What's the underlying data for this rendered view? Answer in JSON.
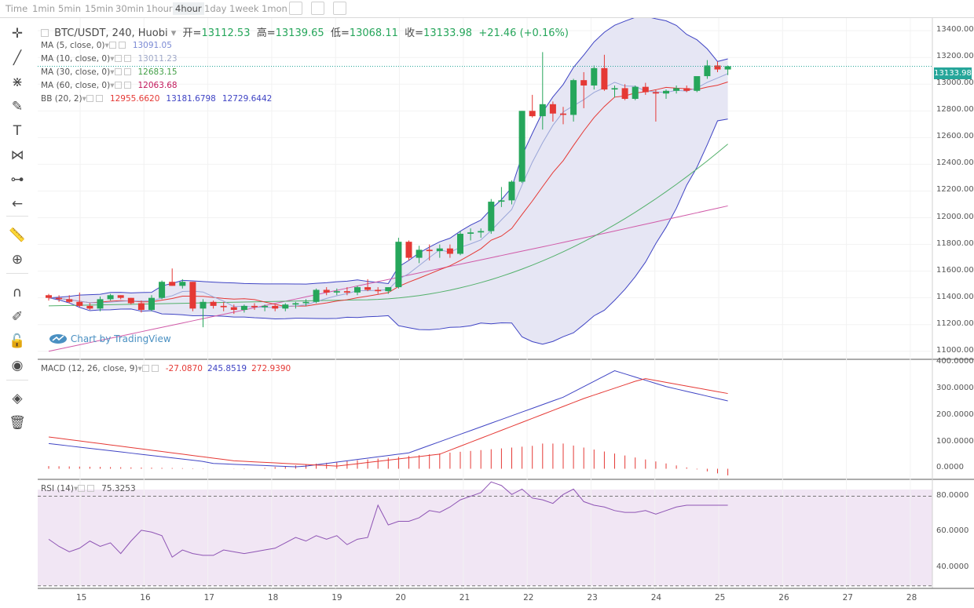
{
  "topbar": {
    "timeframes": [
      "Time",
      "1min",
      "5min",
      "15min",
      "30min",
      "1hour",
      "4hour",
      "1day",
      "1week",
      "1mon"
    ],
    "active": "4hour"
  },
  "header": {
    "symbol": "BTC/USDT, 240, Huobi",
    "open_label": "开=",
    "open": "13112.53",
    "high_label": "高=",
    "high": "13139.65",
    "low_label": "低=",
    "low": "13068.11",
    "close_label": "收=",
    "close": "13133.98",
    "change": "+21.46 (+0.16%)"
  },
  "indicators": [
    {
      "label": "MA (5, close, 0)",
      "value": "13091.05",
      "color": "#7b8ad4"
    },
    {
      "label": "MA (10, close, 0)",
      "value": "13011.23",
      "color": "#9fa8c8"
    },
    {
      "label": "MA (30, close, 0)",
      "value": "12683.15",
      "color": "#43a047"
    },
    {
      "label": "MA (60, close, 0)",
      "value": "12063.68",
      "color": "#c2185b"
    },
    {
      "label": "BB (20, 2)",
      "value": "12955.6620",
      "value2": "13181.6798",
      "value3": "12729.6442",
      "color": "#e53935"
    }
  ],
  "macd_legend": {
    "label": "MACD (12, 26, close, 9)",
    "v1": "-27.0870",
    "v2": "245.8519",
    "v3": "272.9390"
  },
  "rsi_legend": {
    "label": "RSI (14)",
    "v1": "75.3253"
  },
  "watermark": "Chart by TradingView",
  "last_price": "13133.98",
  "price_axis": [
    "13400.00",
    "13200.00",
    "13000.00",
    "12800.00",
    "12600.00",
    "12400.00",
    "12200.00",
    "12000.00",
    "11800.00",
    "11600.00",
    "11400.00",
    "11200.00",
    "11000.00"
  ],
  "macd_axis": [
    "400.0000",
    "300.0000",
    "200.0000",
    "100.0000",
    "0.0000"
  ],
  "rsi_axis": [
    "80.0000",
    "60.0000",
    "40.0000"
  ],
  "time_axis": [
    "15",
    "16",
    "17",
    "18",
    "19",
    "20",
    "21",
    "22",
    "23",
    "24",
    "25",
    "26",
    "27",
    "28"
  ],
  "colors": {
    "up": "#26a65b",
    "down": "#e53935",
    "bb_fill": "#e8e8f5",
    "bb_line": "#3f44c4"
  },
  "chart_data": {
    "type": "candlestick",
    "x_day_ticks": [
      15,
      16,
      17,
      18,
      19,
      20,
      21,
      22,
      23,
      24,
      25,
      26,
      27,
      28
    ],
    "candles": [
      [
        11420,
        11430,
        11380,
        11400
      ],
      [
        11400,
        11420,
        11370,
        11390
      ],
      [
        11390,
        11420,
        11360,
        11370
      ],
      [
        11370,
        11440,
        11330,
        11340
      ],
      [
        11340,
        11360,
        11310,
        11320
      ],
      [
        11320,
        11410,
        11300,
        11390
      ],
      [
        11390,
        11430,
        11380,
        11420
      ],
      [
        11420,
        11420,
        11390,
        11400
      ],
      [
        11400,
        11400,
        11350,
        11360
      ],
      [
        11360,
        11380,
        11290,
        11310
      ],
      [
        11310,
        11420,
        11300,
        11400
      ],
      [
        11400,
        11530,
        11390,
        11520
      ],
      [
        11520,
        11620,
        11490,
        11490
      ],
      [
        11490,
        11540,
        11470,
        11520
      ],
      [
        11520,
        11520,
        11300,
        11320
      ],
      [
        11320,
        11390,
        11180,
        11370
      ],
      [
        11370,
        11380,
        11320,
        11340
      ],
      [
        11340,
        11370,
        11300,
        11330
      ],
      [
        11330,
        11350,
        11280,
        11310
      ],
      [
        11310,
        11350,
        11290,
        11340
      ],
      [
        11340,
        11360,
        11310,
        11330
      ],
      [
        11330,
        11350,
        11300,
        11340
      ],
      [
        11340,
        11350,
        11300,
        11320
      ],
      [
        11320,
        11360,
        11300,
        11350
      ],
      [
        11350,
        11370,
        11320,
        11360
      ],
      [
        11360,
        11390,
        11340,
        11370
      ],
      [
        11370,
        11470,
        11360,
        11460
      ],
      [
        11460,
        11480,
        11420,
        11440
      ],
      [
        11440,
        11470,
        11420,
        11450
      ],
      [
        11450,
        11480,
        11420,
        11440
      ],
      [
        11440,
        11490,
        11420,
        11480
      ],
      [
        11480,
        11540,
        11450,
        11460
      ],
      [
        11460,
        11480,
        11430,
        11450
      ],
      [
        11450,
        11480,
        11430,
        11480
      ],
      [
        11480,
        11850,
        11470,
        11820
      ],
      [
        11820,
        11830,
        11680,
        11700
      ],
      [
        11700,
        11790,
        11660,
        11760
      ],
      [
        11760,
        11800,
        11680,
        11750
      ],
      [
        11750,
        11800,
        11700,
        11770
      ],
      [
        11770,
        11800,
        11700,
        11730
      ],
      [
        11730,
        11900,
        11720,
        11880
      ],
      [
        11880,
        11920,
        11830,
        11890
      ],
      [
        11890,
        11920,
        11850,
        11900
      ],
      [
        11900,
        12140,
        11880,
        12120
      ],
      [
        12120,
        12230,
        12080,
        12130
      ],
      [
        12130,
        12280,
        12100,
        12270
      ],
      [
        12270,
        12800,
        12260,
        12800
      ],
      [
        12800,
        12920,
        12750,
        12760
      ],
      [
        12760,
        13240,
        12660,
        12850
      ],
      [
        12850,
        12870,
        12720,
        12780
      ],
      [
        12780,
        12830,
        12700,
        12770
      ],
      [
        12770,
        13040,
        12720,
        13030
      ],
      [
        13030,
        13090,
        12820,
        12990
      ],
      [
        12990,
        13140,
        12960,
        13120
      ],
      [
        13120,
        13220,
        12950,
        12960
      ],
      [
        12960,
        12990,
        12900,
        12970
      ],
      [
        12970,
        13000,
        12880,
        12890
      ],
      [
        12890,
        12990,
        12880,
        12980
      ],
      [
        12980,
        13010,
        12920,
        12940
      ],
      [
        12940,
        12960,
        12720,
        12930
      ],
      [
        12930,
        12960,
        12890,
        12950
      ],
      [
        12950,
        12990,
        12930,
        12970
      ],
      [
        12970,
        12990,
        12940,
        12950
      ],
      [
        12950,
        13050,
        12940,
        13060
      ],
      [
        13060,
        13180,
        13040,
        13140
      ],
      [
        13140,
        13170,
        13090,
        13110
      ],
      [
        13110,
        13140,
        13068,
        13134
      ]
    ]
  }
}
